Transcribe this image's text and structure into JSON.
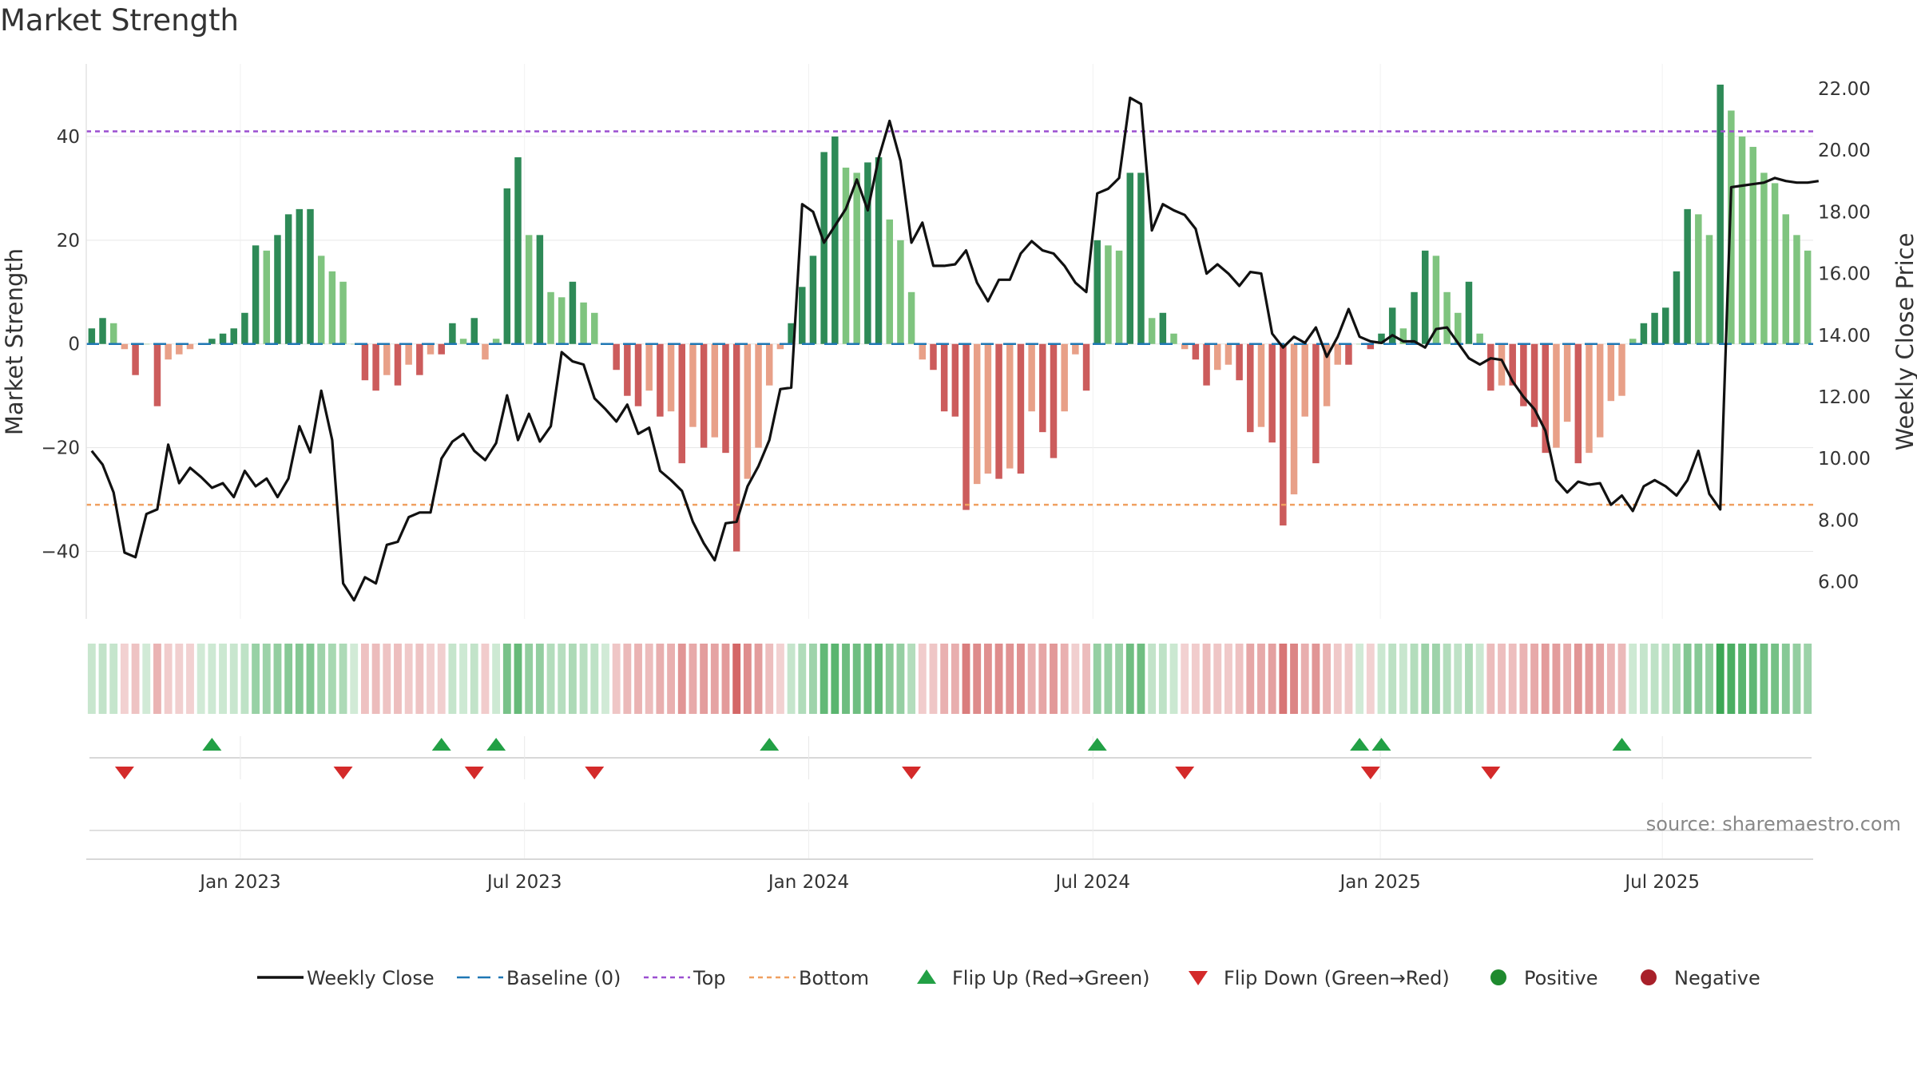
{
  "chart_data": {
    "type": "bar",
    "title": "Market Strength",
    "ylabel_left": "Market Strength",
    "ylabel_right": "Weekly Close Price",
    "ylim_left": [
      -53,
      54
    ],
    "ylim_right": [
      4.8,
      22.8
    ],
    "yticks_left": [
      40,
      20,
      0,
      -20,
      -40
    ],
    "yticks_left_labels": [
      "40",
      "20",
      "0",
      "−20",
      "−40"
    ],
    "yticks_right": [
      22,
      20,
      18,
      16,
      14,
      12,
      10,
      8,
      6
    ],
    "yticks_right_labels": [
      "22.00",
      "20.00",
      "18.00",
      "16.00",
      "14.00",
      "12.00",
      "10.00",
      "8.00",
      "6.00"
    ],
    "x_start": "2022-10-07",
    "week_interval_days": 7,
    "xticks": [
      {
        "label": "Jan 2023",
        "week": 13.6
      },
      {
        "label": "Jul 2023",
        "week": 39.6
      },
      {
        "label": "Jan 2024",
        "week": 65.6
      },
      {
        "label": "Jul 2024",
        "week": 91.6
      },
      {
        "label": "Jan 2025",
        "week": 117.9
      },
      {
        "label": "Jul 2025",
        "week": 143.7
      }
    ],
    "top_line": 41,
    "bottom_line": -31,
    "baseline": 0,
    "strength": [
      3,
      5,
      4,
      -1,
      -6,
      0,
      -12,
      -3,
      -2,
      -1,
      0,
      1,
      2,
      3,
      6,
      19,
      18,
      21,
      25,
      26,
      26,
      17,
      14,
      12,
      0,
      -7,
      -9,
      -6,
      -8,
      -4,
      -6,
      -2,
      -2,
      4,
      1,
      5,
      -3,
      1,
      30,
      36,
      21,
      21,
      10,
      9,
      12,
      8,
      6,
      0,
      -5,
      -10,
      -12,
      -9,
      -14,
      -13,
      -23,
      -16,
      -20,
      -18,
      -21,
      -40,
      -26,
      -20,
      -8,
      -1,
      4,
      11,
      17,
      37,
      40,
      34,
      33,
      35,
      36,
      24,
      20,
      10,
      -3,
      -5,
      -13,
      -14,
      -32,
      -27,
      -25,
      -26,
      -24,
      -25,
      -13,
      -17,
      -22,
      -13,
      -2,
      -9,
      20,
      19,
      18,
      33,
      33,
      5,
      6,
      2,
      -1,
      -3,
      -8,
      -5,
      -4,
      -7,
      -17,
      -16,
      -19,
      -35,
      -29,
      -14,
      -23,
      -12,
      -4,
      -4,
      0,
      -1,
      2,
      7,
      3,
      10,
      18,
      17,
      10,
      6,
      12,
      2,
      -9,
      -8,
      -8,
      -12,
      -16,
      -21,
      -20,
      -15,
      -23,
      -21,
      -18,
      -11,
      -10,
      1,
      4,
      6,
      7,
      14,
      26,
      25,
      21,
      50,
      45,
      40,
      38,
      33,
      31,
      25,
      21,
      18
    ],
    "weekly_close": [
      10.25,
      9.8,
      8.9,
      6.95,
      6.8,
      8.2,
      8.35,
      10.45,
      9.2,
      9.7,
      9.4,
      9.05,
      9.2,
      8.75,
      9.6,
      9.1,
      9.35,
      8.75,
      9.35,
      11.05,
      10.2,
      12.2,
      10.6,
      5.95,
      5.4,
      6.15,
      5.95,
      7.2,
      7.3,
      8.1,
      8.25,
      8.25,
      10.0,
      10.55,
      10.8,
      10.25,
      9.95,
      10.5,
      12.05,
      10.6,
      11.45,
      10.55,
      11.05,
      13.45,
      13.15,
      13.05,
      11.95,
      11.6,
      11.2,
      11.75,
      10.8,
      11.0,
      9.6,
      9.3,
      8.95,
      7.95,
      7.25,
      6.7,
      7.9,
      7.95,
      9.1,
      9.75,
      10.6,
      12.25,
      12.3,
      18.25,
      18.0,
      17.0,
      17.55,
      18.1,
      19.05,
      18.05,
      19.75,
      20.95,
      19.65,
      17.0,
      17.65,
      16.25,
      16.25,
      16.3,
      16.75,
      15.7,
      15.1,
      15.8,
      15.8,
      16.65,
      17.05,
      16.75,
      16.65,
      16.25,
      15.7,
      15.4,
      18.6,
      18.75,
      19.1,
      21.7,
      21.5,
      17.4,
      18.25,
      18.05,
      17.9,
      17.45,
      16.0,
      16.3,
      16.0,
      15.6,
      16.05,
      16.0,
      14.05,
      13.6,
      13.95,
      13.75,
      14.25,
      13.3,
      13.95,
      14.85,
      13.95,
      13.8,
      13.75,
      14.0,
      13.8,
      13.8,
      13.6,
      14.2,
      14.25,
      13.75,
      13.25,
      13.05,
      13.25,
      13.2,
      12.5,
      12.0,
      11.6,
      10.9,
      9.3,
      8.9,
      9.25,
      9.15,
      9.2,
      8.5,
      8.8,
      8.3,
      9.1,
      9.3,
      9.1,
      8.8,
      9.3,
      10.25,
      8.85,
      8.35,
      18.8,
      18.85,
      18.9,
      18.95,
      19.1,
      19.0,
      18.95,
      18.95,
      19.0
    ],
    "flip_up_weeks": [
      11,
      32,
      37,
      62,
      92,
      116,
      118,
      140
    ],
    "flip_down_weeks": [
      3,
      23,
      35,
      46,
      75,
      100,
      117,
      128
    ],
    "source": "source: sharemaestro.com",
    "legend": [
      {
        "label": "Weekly Close",
        "kind": "line",
        "color": "#111111"
      },
      {
        "label": "Baseline (0)",
        "kind": "dashed",
        "color": "#1f77b4"
      },
      {
        "label": "Top",
        "kind": "dotted",
        "color": "#9b4fd0"
      },
      {
        "label": "Bottom",
        "kind": "dotted",
        "color": "#f0a060"
      },
      {
        "label": "Flip Up (Red→Green)",
        "kind": "triangle-up",
        "color": "#22a045"
      },
      {
        "label": "Flip Down (Green→Red)",
        "kind": "triangle-down",
        "color": "#d42a2a"
      },
      {
        "label": "Positive",
        "kind": "dot",
        "color": "#1e8a2e"
      },
      {
        "label": "Negative",
        "kind": "dot",
        "color": "#a8202a"
      }
    ]
  },
  "colors": {
    "green_dark": "#2e8a57",
    "green_light": "#7fc47f",
    "red_dark": "#cc5c5c",
    "red_light": "#e8a088",
    "price_line": "#111111",
    "grid": "#e6e6e6"
  }
}
